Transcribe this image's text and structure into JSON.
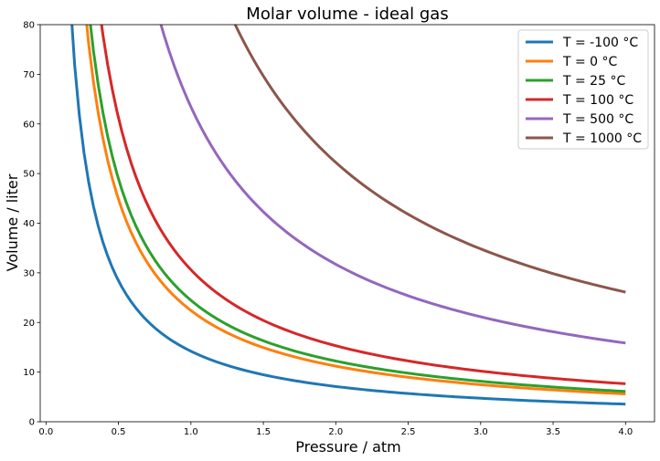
{
  "chart_data": {
    "type": "line",
    "title": "Molar volume - ideal gas",
    "xlabel": "Pressure / atm",
    "ylabel": "Volume / liter",
    "xlim": [
      -0.04,
      4.2
    ],
    "ylim": [
      0,
      80
    ],
    "xticks": [
      0.0,
      0.5,
      1.0,
      1.5,
      2.0,
      2.5,
      3.0,
      3.5,
      4.0
    ],
    "xtick_labels": [
      "0.0",
      "0.5",
      "1.0",
      "1.5",
      "2.0",
      "2.5",
      "3.0",
      "3.5",
      "4.0"
    ],
    "yticks": [
      0,
      10,
      20,
      30,
      40,
      50,
      60,
      70,
      80
    ],
    "ytick_labels": [
      "0",
      "10",
      "20",
      "30",
      "40",
      "50",
      "60",
      "70",
      "80"
    ],
    "grid": false,
    "legend_position": "top-right",
    "x_range": [
      0.1,
      4.0
    ],
    "gas_constant": 0.08206,
    "series": [
      {
        "name": "T = -100 °C",
        "temperature_c": -100,
        "color": "#1f77b4"
      },
      {
        "name": "T = 0 °C",
        "temperature_c": 0,
        "color": "#ff7f0e"
      },
      {
        "name": "T = 25 °C",
        "temperature_c": 25,
        "color": "#2ca02c"
      },
      {
        "name": "T = 100 °C",
        "temperature_c": 100,
        "color": "#d62728"
      },
      {
        "name": "T = 500 °C",
        "temperature_c": 500,
        "color": "#9467bd"
      },
      {
        "name": "T = 1000 °C",
        "temperature_c": 1000,
        "color": "#8c564b"
      }
    ]
  }
}
